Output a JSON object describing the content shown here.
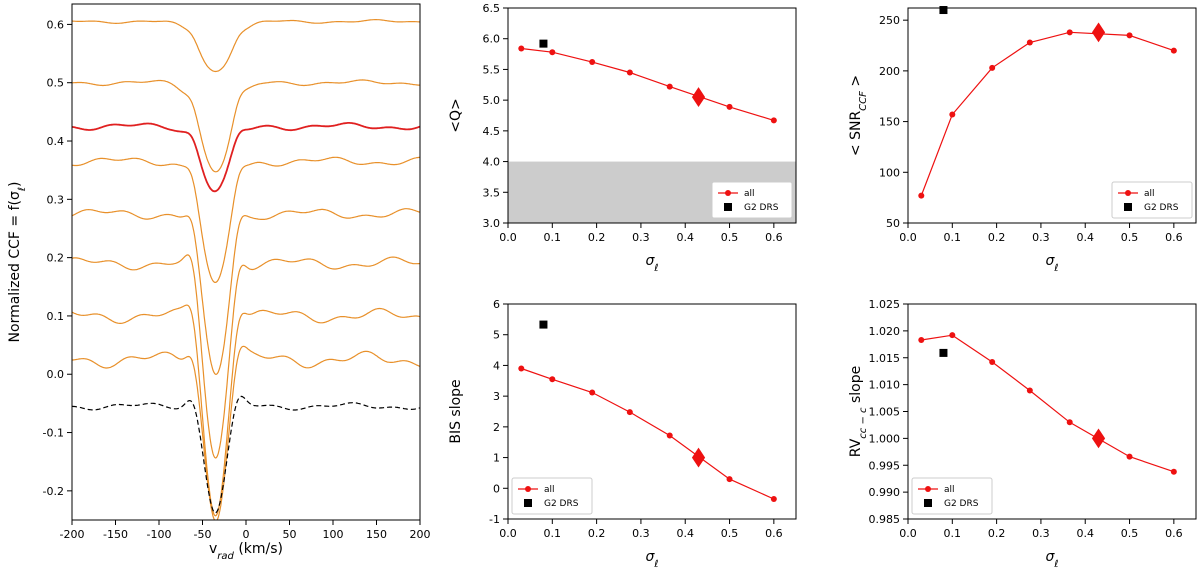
{
  "chart_data": [
    {
      "id": "ccf",
      "type": "line",
      "xlabel": "v",
      "xlabel_sub": "rad",
      "xlabel_tail": " (km/s)",
      "ylabel": "Normalized CCF = f(σ",
      "ylabel_sub": "ℓ",
      "ylabel_tail": ")",
      "xlim": [
        -200,
        200
      ],
      "ylim": [
        -0.25,
        0.635
      ],
      "xticks": [
        -200,
        -150,
        -100,
        -50,
        0,
        50,
        100,
        150,
        200
      ],
      "yticks": [
        -0.2,
        -0.1,
        0.0,
        0.1,
        0.2,
        0.3,
        0.4,
        0.5,
        0.6
      ],
      "line_center": -35,
      "series": [
        {
          "offset": 0.605,
          "depth": 0.085,
          "color": "#e8902a",
          "dash": false,
          "wiggle": 0.002
        },
        {
          "offset": 0.5,
          "depth": 0.15,
          "color": "#e8902a",
          "dash": false,
          "wiggle": 0.003
        },
        {
          "offset": 0.425,
          "depth": 0.11,
          "color": "#e02020",
          "dash": false,
          "wiggle": 0.004
        },
        {
          "offset": 0.365,
          "depth": 0.215,
          "color": "#e8902a",
          "dash": false,
          "wiggle": 0.005
        },
        {
          "offset": 0.275,
          "depth": 0.28,
          "color": "#e8902a",
          "dash": false,
          "wiggle": 0.006
        },
        {
          "offset": 0.19,
          "depth": 0.33,
          "color": "#e8902a",
          "dash": false,
          "wiggle": 0.007
        },
        {
          "offset": 0.1,
          "depth": 0.34,
          "color": "#e8902a",
          "dash": false,
          "wiggle": 0.008
        },
        {
          "offset": 0.025,
          "depth": 0.27,
          "color": "#e8902a",
          "dash": false,
          "wiggle": 0.009
        },
        {
          "offset": -0.055,
          "depth": 0.18,
          "color": "#000000",
          "dash": true,
          "wiggle": 0.004
        }
      ]
    },
    {
      "id": "q",
      "type": "line",
      "ylabel": "<Q>",
      "xlabel": "σ",
      "xlabel_sub": "ℓ",
      "xlim": [
        0.0,
        0.65
      ],
      "ylim": [
        3.0,
        6.5
      ],
      "xticks": [
        0.0,
        0.1,
        0.2,
        0.3,
        0.4,
        0.5,
        0.6
      ],
      "yticks": [
        3.0,
        3.5,
        4.0,
        4.5,
        5.0,
        5.5,
        6.0,
        6.5
      ],
      "shade": [
        3.0,
        4.0
      ],
      "series": [
        {
          "name": "all",
          "x": [
            0.03,
            0.1,
            0.19,
            0.275,
            0.365,
            0.5,
            0.6
          ],
          "y": [
            5.84,
            5.78,
            5.62,
            5.45,
            5.22,
            4.89,
            4.67
          ]
        }
      ],
      "highlight": {
        "x": 0.43,
        "y": 5.05
      },
      "reference": {
        "name": "G2 DRS",
        "x": 0.08,
        "y": 5.92
      },
      "legend": "lower-right"
    },
    {
      "id": "snr",
      "type": "line",
      "ylabel": "< SNR",
      "ylabel_sub": "CCF",
      "ylabel_tail": " >",
      "xlabel": "σ",
      "xlabel_sub": "ℓ",
      "xlim": [
        0.0,
        0.65
      ],
      "ylim": [
        50,
        262
      ],
      "xticks": [
        0.0,
        0.1,
        0.2,
        0.3,
        0.4,
        0.5,
        0.6
      ],
      "yticks": [
        50,
        100,
        150,
        200,
        250
      ],
      "series": [
        {
          "name": "all",
          "x": [
            0.03,
            0.1,
            0.19,
            0.275,
            0.365,
            0.5,
            0.6
          ],
          "y": [
            77,
            157,
            203,
            228,
            238,
            235,
            220
          ]
        }
      ],
      "highlight": {
        "x": 0.43,
        "y": 238
      },
      "reference": {
        "name": "G2 DRS",
        "x": 0.08,
        "y": 260
      },
      "legend": "lower-right"
    },
    {
      "id": "bis",
      "type": "line",
      "ylabel": "BIS slope",
      "xlabel": "σ",
      "xlabel_sub": "ℓ",
      "xlim": [
        0.0,
        0.65
      ],
      "ylim": [
        -1,
        6
      ],
      "xticks": [
        0.0,
        0.1,
        0.2,
        0.3,
        0.4,
        0.5,
        0.6
      ],
      "yticks": [
        -1,
        0,
        1,
        2,
        3,
        4,
        5,
        6
      ],
      "series": [
        {
          "name": "all",
          "x": [
            0.03,
            0.1,
            0.19,
            0.275,
            0.365,
            0.5,
            0.6
          ],
          "y": [
            3.9,
            3.55,
            3.12,
            2.48,
            1.72,
            0.3,
            -0.35
          ]
        }
      ],
      "highlight": {
        "x": 0.43,
        "y": 1.0
      },
      "reference": {
        "name": "G2 DRS",
        "x": 0.08,
        "y": 5.33
      },
      "legend": "lower-left"
    },
    {
      "id": "rv",
      "type": "line",
      "ylabel": "RV",
      "ylabel_sub": "cc − c",
      "ylabel_tail": " slope",
      "xlabel": "σ",
      "xlabel_sub": "ℓ",
      "xlim": [
        0.0,
        0.65
      ],
      "ylim": [
        0.985,
        1.025
      ],
      "xticks": [
        0.0,
        0.1,
        0.2,
        0.3,
        0.4,
        0.5,
        0.6
      ],
      "yticks": [
        0.985,
        0.99,
        0.995,
        1.0,
        1.005,
        1.01,
        1.015,
        1.02,
        1.025
      ],
      "series": [
        {
          "name": "all",
          "x": [
            0.03,
            0.1,
            0.19,
            0.275,
            0.365,
            0.5,
            0.6
          ],
          "y": [
            1.0183,
            1.0192,
            1.0142,
            1.0089,
            1.003,
            0.9966,
            0.9938
          ]
        }
      ],
      "highlight": {
        "x": 0.43,
        "y": 1.0
      },
      "reference": {
        "name": "G2 DRS",
        "x": 0.08,
        "y": 1.0159
      },
      "legend": "lower-left"
    }
  ]
}
